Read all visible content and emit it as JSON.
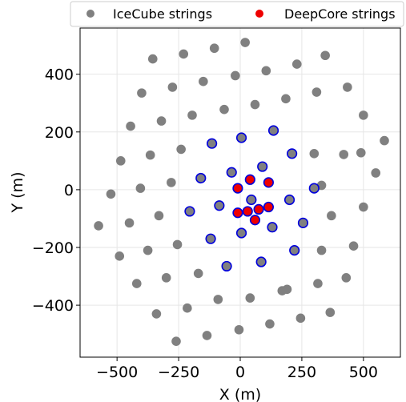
{
  "chart_data": {
    "type": "scatter",
    "xlabel": "X (m)",
    "ylabel": "Y (m)",
    "xlim": [
      -650,
      650
    ],
    "ylim": [
      -580,
      560
    ],
    "xticks": [
      -500,
      -250,
      0,
      250,
      500
    ],
    "yticks": [
      -400,
      -200,
      0,
      200,
      400
    ],
    "xtick_labels": [
      "−500",
      "−250",
      "0",
      "250",
      "500"
    ],
    "ytick_labels": [
      "−400",
      "−200",
      "0",
      "200",
      "400"
    ],
    "grid": true,
    "legend_position": "top",
    "series": [
      {
        "name": "IceCube strings",
        "color": "#808080",
        "points": [
          [
            -355,
            453
          ],
          [
            -230,
            470
          ],
          [
            -105,
            490
          ],
          [
            20,
            510
          ],
          [
            -400,
            335
          ],
          [
            -275,
            355
          ],
          [
            -150,
            375
          ],
          [
            -20,
            395
          ],
          [
            105,
            412
          ],
          [
            230,
            435
          ],
          [
            345,
            465
          ],
          [
            -445,
            220
          ],
          [
            -320,
            238
          ],
          [
            -195,
            258
          ],
          [
            -65,
            278
          ],
          [
            60,
            295
          ],
          [
            185,
            315
          ],
          [
            310,
            338
          ],
          [
            435,
            355
          ],
          [
            -485,
            100
          ],
          [
            -365,
            120
          ],
          [
            -240,
            140
          ],
          [
            300,
            125
          ],
          [
            420,
            122
          ],
          [
            490,
            128
          ],
          [
            500,
            258
          ],
          [
            585,
            170
          ],
          [
            -525,
            -15
          ],
          [
            -405,
            5
          ],
          [
            -280,
            25
          ],
          [
            330,
            15
          ],
          [
            550,
            58
          ],
          [
            -575,
            -125
          ],
          [
            -450,
            -115
          ],
          [
            -330,
            -90
          ],
          [
            370,
            -90
          ],
          [
            500,
            -60
          ],
          [
            -490,
            -230
          ],
          [
            -375,
            -210
          ],
          [
            -255,
            -190
          ],
          [
            330,
            -210
          ],
          [
            460,
            -195
          ],
          [
            -420,
            -325
          ],
          [
            -300,
            -305
          ],
          [
            -170,
            -290
          ],
          [
            190,
            -345
          ],
          [
            315,
            -325
          ],
          [
            430,
            -305
          ],
          [
            -340,
            -430
          ],
          [
            -215,
            -410
          ],
          [
            -90,
            -380
          ],
          [
            40,
            -375
          ],
          [
            170,
            -350
          ],
          [
            -260,
            -525
          ],
          [
            -135,
            -505
          ],
          [
            -5,
            -485
          ],
          [
            120,
            -465
          ],
          [
            245,
            -445
          ],
          [
            365,
            -425
          ]
        ]
      },
      {
        "name": "",
        "color": "#808080",
        "edge": "#0000dd",
        "points": [
          [
            -115,
            160
          ],
          [
            5,
            180
          ],
          [
            135,
            205
          ],
          [
            -160,
            40
          ],
          [
            -35,
            60
          ],
          [
            90,
            80
          ],
          [
            210,
            125
          ],
          [
            -205,
            -75
          ],
          [
            -85,
            -55
          ],
          [
            45,
            -35
          ],
          [
            200,
            -35
          ],
          [
            300,
            5
          ],
          [
            -120,
            -170
          ],
          [
            5,
            -150
          ],
          [
            130,
            -130
          ],
          [
            255,
            -115
          ],
          [
            -55,
            -265
          ],
          [
            85,
            -250
          ],
          [
            220,
            -210
          ]
        ]
      },
      {
        "name": "DeepCore strings",
        "color": "#ee0000",
        "edge": "#0000dd",
        "points": [
          [
            -10,
            5
          ],
          [
            40,
            35
          ],
          [
            115,
            25
          ],
          [
            -10,
            -80
          ],
          [
            30,
            -75
          ],
          [
            75,
            -68
          ],
          [
            115,
            -60
          ],
          [
            60,
            -105
          ]
        ]
      }
    ]
  }
}
